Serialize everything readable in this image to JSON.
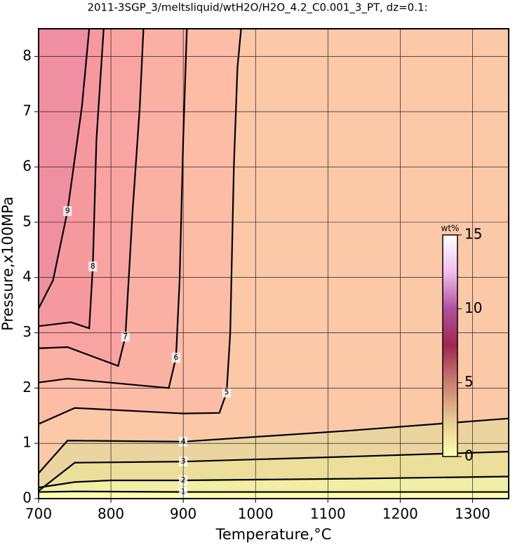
{
  "chart_data": {
    "type": "contour",
    "title": "2011-3SGP_3/meltsliquid/wtH2O/H2O_4.2_C0.001_3_PT, dz=0.1:",
    "x_label": "Temperature,°C",
    "y_label": "Pressure,x100MPa",
    "xlim": [
      700,
      1350
    ],
    "ylim": [
      0,
      8.5
    ],
    "xticks": [
      700,
      800,
      900,
      1000,
      1100,
      1200,
      1300
    ],
    "yticks": [
      0,
      1,
      2,
      3,
      4,
      5,
      6,
      7,
      8
    ],
    "grid": true,
    "background_color": "#fbc8a8",
    "contours": [
      {
        "level": 1,
        "color": "#f2eea6",
        "x": [
          700,
          750,
          900,
          1130,
          1350
        ],
        "y": [
          0.12,
          0.13,
          0.12,
          0.12,
          0.12
        ]
      },
      {
        "level": 2,
        "color": "#ecdf9c",
        "x": [
          700,
          750,
          800,
          900,
          1130,
          1350
        ],
        "y": [
          0.2,
          0.3,
          0.33,
          0.33,
          0.36,
          0.4
        ]
      },
      {
        "level": 3,
        "color": "#ead4a0",
        "x": [
          700,
          750,
          900,
          1130,
          1350
        ],
        "y": [
          0.14,
          0.65,
          0.67,
          0.76,
          0.85
        ]
      },
      {
        "level": 4,
        "color": "#f2cda2",
        "x": [
          700,
          740,
          900,
          1130,
          1350
        ],
        "y": [
          0.46,
          1.05,
          1.03,
          1.23,
          1.45
        ]
      },
      {
        "level": 5,
        "color": "#fcbca6",
        "x": [
          700,
          750,
          900,
          950,
          960,
          965,
          970,
          975,
          980
        ],
        "y": [
          1.35,
          1.64,
          1.54,
          1.55,
          1.92,
          3,
          6,
          7.8,
          8.5
        ]
      },
      {
        "level": 6,
        "color": "#fbb0a4",
        "x": [
          700,
          740,
          880,
          890,
          895,
          900,
          905
        ],
        "y": [
          2.1,
          2.17,
          2.0,
          2.55,
          3.95,
          6.5,
          8.5
        ]
      },
      {
        "level": 7,
        "color": "#f9a4a2",
        "x": [
          700,
          740,
          810,
          820,
          830,
          840,
          845
        ],
        "y": [
          2.72,
          2.74,
          2.4,
          2.93,
          5.2,
          7.1,
          8.5
        ]
      },
      {
        "level": 8,
        "color": "#f6999f",
        "x": [
          700,
          745,
          770,
          775,
          780,
          790
        ],
        "y": [
          3.12,
          3.19,
          3.08,
          4.2,
          6.5,
          8.5
        ]
      },
      {
        "level": 9,
        "color": "#f08ea2",
        "x": [
          700,
          720,
          740,
          760,
          770
        ],
        "y": [
          3.44,
          3.95,
          5.2,
          7.1,
          8.5
        ]
      }
    ],
    "colorbar": {
      "label": "wt%",
      "lim": [
        0,
        15
      ],
      "ticks": [
        0,
        5,
        10,
        15
      ],
      "colors": [
        "#ffffb0",
        "#e8c890",
        "#c88070",
        "#a02850",
        "#b050a0",
        "#f0c0f0",
        "#ffffff"
      ]
    }
  }
}
